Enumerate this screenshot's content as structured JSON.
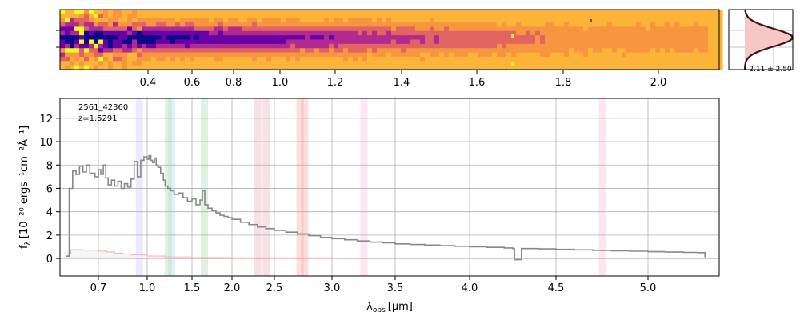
{
  "chart_data": [
    {
      "type": "heatmap",
      "panel": "2d-spectrum",
      "x_tick_labels": [
        "0.4",
        "0.6",
        "0.8",
        "1.0",
        "1.2",
        "1.4",
        "1.6",
        "1.8",
        "2.0"
      ],
      "x_ticks_um": [
        0.4,
        0.6,
        0.8,
        1.0,
        1.2,
        1.4,
        1.6,
        1.8,
        2.0
      ],
      "colormap": "plasma",
      "colors": [
        "#fbb438",
        "#f89540",
        "#e16462",
        "#b12a90",
        "#6a00a8",
        "#0d0887"
      ],
      "bad_pixel_color": "#f0f921"
    },
    {
      "type": "area",
      "panel": "spatial-profile",
      "annotation": "2.11 ± 2.50",
      "fill_color": "#f7c6c6",
      "line_color": "#3a1010"
    },
    {
      "type": "line",
      "panel": "1d-spectrum",
      "object_id": "2561_42360",
      "redshift_label": "z=1.5291",
      "xlabel_main": "λ",
      "xlabel_sub": "obs",
      "xlabel_unit": "[μm]",
      "ylabel_main": "f",
      "ylabel_sub": "λ",
      "ylabel_unit": "[10⁻²⁰ ergs⁻¹cm⁻²Å⁻¹]",
      "x_tick_labels": [
        "0.7",
        "1.0",
        "1.5",
        "2.0",
        "2.5",
        "3.0",
        "3.5",
        "4.0",
        "4.5",
        "5.0"
      ],
      "x_ticks_um": [
        0.7,
        1.0,
        1.5,
        2.0,
        2.5,
        3.0,
        3.5,
        4.0,
        4.5,
        5.0
      ],
      "y_tick_labels": [
        "0",
        "2",
        "4",
        "6",
        "8",
        "10",
        "12"
      ],
      "ylim": [
        -1.5,
        13.7
      ],
      "xlim_um": [
        0.6,
        5.4
      ],
      "grid": true,
      "line_bands": [
        {
          "x": 0.95,
          "color": "#c7c7ff"
        },
        {
          "x": 1.23,
          "color": "#a8d8a8"
        },
        {
          "x": 1.27,
          "color": "#a9d6e5"
        },
        {
          "x": 1.65,
          "color": "#a8d8a8"
        },
        {
          "x": 2.3,
          "color": "#e6a8b8"
        },
        {
          "x": 2.4,
          "color": "#e6a8b8"
        },
        {
          "x": 2.72,
          "color": "#f4a0a0"
        },
        {
          "x": 2.76,
          "color": "#f4a0a0"
        },
        {
          "x": 3.25,
          "color": "#f5b8d8"
        },
        {
          "x": 4.75,
          "color": "#f5b8d8"
        }
      ],
      "series": [
        {
          "role": "flux",
          "color": "#888888",
          "x": [
            0.605,
            0.615,
            0.625,
            0.635,
            0.645,
            0.655,
            0.665,
            0.675,
            0.69,
            0.7,
            0.715,
            0.73,
            0.745,
            0.76,
            0.78,
            0.8,
            0.82,
            0.84,
            0.86,
            0.88,
            0.9,
            0.92,
            0.94,
            0.96,
            0.98,
            1.0,
            1.02,
            1.04,
            1.06,
            1.08,
            1.1,
            1.12,
            1.15,
            1.18,
            1.2,
            1.23,
            1.26,
            1.3,
            1.35,
            1.4,
            1.45,
            1.5,
            1.55,
            1.6,
            1.63,
            1.66,
            1.7,
            1.75,
            1.8,
            1.85,
            1.9,
            1.95,
            2.0,
            2.1,
            2.2,
            2.3,
            2.4,
            2.5,
            2.6,
            2.7,
            2.8,
            2.9,
            3.0,
            3.1,
            3.2,
            3.3,
            3.4,
            3.5,
            3.6,
            3.7,
            3.8,
            3.9,
            4.0,
            4.1,
            4.2,
            4.25,
            4.26,
            4.3,
            4.4,
            4.5,
            4.6,
            4.7,
            4.8,
            4.9,
            5.0,
            5.1,
            5.2,
            5.28,
            5.32
          ],
          "y": [
            0.2,
            6.0,
            7.5,
            7.2,
            7.9,
            7.4,
            8.0,
            7.3,
            7.0,
            7.6,
            7.2,
            8.0,
            6.9,
            6.3,
            6.7,
            6.2,
            6.6,
            6.0,
            6.4,
            6.1,
            6.8,
            8.3,
            7.0,
            8.4,
            8.7,
            8.5,
            8.8,
            8.4,
            8.2,
            8.6,
            8.0,
            7.8,
            7.3,
            6.7,
            6.2,
            6.0,
            5.8,
            5.5,
            5.6,
            5.2,
            4.9,
            5.1,
            4.6,
            5.0,
            5.8,
            4.6,
            4.3,
            4.1,
            3.9,
            3.7,
            3.6,
            3.5,
            3.35,
            3.1,
            2.9,
            2.7,
            2.55,
            2.4,
            2.25,
            2.1,
            1.95,
            1.8,
            1.7,
            1.6,
            1.5,
            1.4,
            1.35,
            1.25,
            1.2,
            1.15,
            1.1,
            1.05,
            1.0,
            0.95,
            0.9,
            0.85,
            -0.1,
            0.85,
            0.82,
            0.78,
            0.74,
            0.7,
            0.66,
            0.62,
            0.58,
            0.55,
            0.52,
            0.5,
            0.1
          ]
        },
        {
          "role": "error",
          "color": "#f2a3a3",
          "x": [
            0.6,
            0.62,
            0.65,
            0.7,
            0.75,
            0.8,
            0.85,
            0.9,
            1.0,
            1.2,
            1.5,
            2.0,
            3.0,
            4.0,
            5.0,
            5.35
          ],
          "y": [
            0.4,
            0.75,
            0.7,
            0.62,
            0.55,
            0.45,
            0.38,
            0.3,
            0.2,
            0.12,
            0.07,
            0.04,
            0.03,
            0.03,
            0.03,
            0.03
          ]
        }
      ]
    }
  ]
}
